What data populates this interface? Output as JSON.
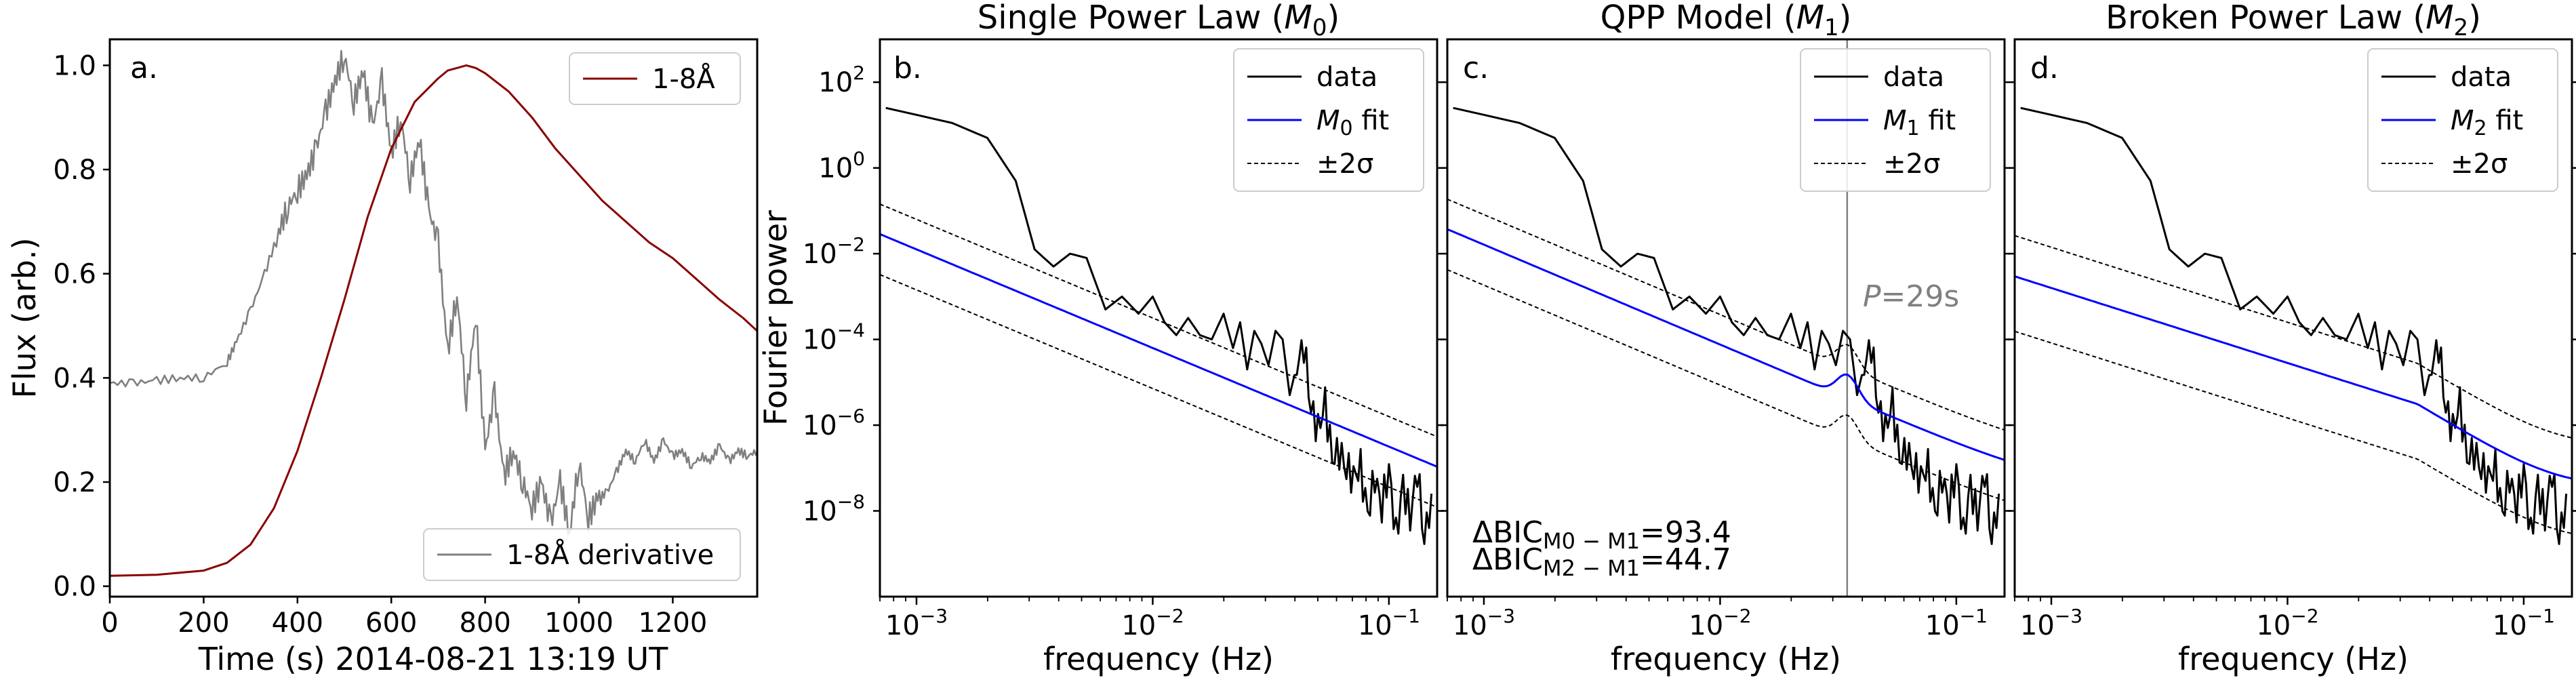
{
  "colors": {
    "flux": "#8b0000",
    "derivative": "#808080",
    "data": "#000000",
    "fit": "#0000ff",
    "band": "#000000",
    "period_line": "#808080",
    "period_text": "#808080"
  },
  "chart_data": [
    {
      "id": "a",
      "type": "line",
      "panel_label": "a.",
      "xlabel": "Time (s) 2014-08-21 13:19 UT",
      "ylabel": "Flux (arb.)",
      "xlim": [
        0,
        1380
      ],
      "ylim": [
        -0.02,
        1.05
      ],
      "xticks": [
        0,
        200,
        400,
        600,
        800,
        1000,
        1200
      ],
      "xtick_labels": [
        "0",
        "200",
        "400",
        "600",
        "800",
        "1000",
        "1200"
      ],
      "yticks": [
        0.0,
        0.2,
        0.4,
        0.6,
        0.8,
        1.0
      ],
      "ytick_labels": [
        "0.0",
        "0.2",
        "0.4",
        "0.6",
        "0.8",
        "1.0"
      ],
      "legend_top": {
        "position": "top-right",
        "label": "1-8Å"
      },
      "legend_bottom": {
        "position": "bottom-right",
        "label": "1-8Å derivative"
      },
      "series": [
        {
          "name": "1-8Å",
          "x": [
            0,
            100,
            200,
            250,
            300,
            350,
            400,
            450,
            500,
            550,
            600,
            650,
            700,
            720,
            740,
            760,
            780,
            800,
            850,
            900,
            950,
            1000,
            1050,
            1100,
            1150,
            1200,
            1250,
            1300,
            1350,
            1380
          ],
          "y": [
            0.02,
            0.022,
            0.03,
            0.045,
            0.08,
            0.15,
            0.26,
            0.4,
            0.55,
            0.71,
            0.84,
            0.93,
            0.975,
            0.99,
            0.995,
            1.0,
            0.995,
            0.985,
            0.95,
            0.9,
            0.84,
            0.79,
            0.74,
            0.7,
            0.66,
            0.63,
            0.59,
            0.55,
            0.515,
            0.49
          ]
        },
        {
          "name": "1-8Å derivative",
          "x": [
            0,
            50,
            100,
            150,
            200,
            250,
            270,
            300,
            330,
            360,
            380,
            400,
            420,
            440,
            460,
            480,
            500,
            520,
            540,
            560,
            580,
            600,
            620,
            640,
            660,
            680,
            700,
            720,
            740,
            760,
            780,
            800,
            820,
            840,
            860,
            880,
            900,
            920,
            940,
            960,
            980,
            1000,
            1020,
            1040,
            1060,
            1080,
            1100,
            1120,
            1140,
            1160,
            1180,
            1200,
            1220,
            1240,
            1260,
            1280,
            1300,
            1320,
            1340,
            1360,
            1380
          ],
          "y": [
            0.39,
            0.39,
            0.395,
            0.4,
            0.4,
            0.43,
            0.47,
            0.53,
            0.6,
            0.68,
            0.73,
            0.76,
            0.79,
            0.84,
            0.91,
            0.97,
            1.02,
            0.93,
            0.99,
            0.88,
            0.97,
            0.83,
            0.9,
            0.78,
            0.86,
            0.72,
            0.66,
            0.45,
            0.56,
            0.36,
            0.52,
            0.26,
            0.37,
            0.21,
            0.26,
            0.2,
            0.15,
            0.2,
            0.12,
            0.2,
            0.1,
            0.24,
            0.13,
            0.17,
            0.18,
            0.22,
            0.26,
            0.24,
            0.28,
            0.24,
            0.28,
            0.25,
            0.26,
            0.23,
            0.25,
            0.24,
            0.27,
            0.24,
            0.26,
            0.25,
            0.26
          ]
        }
      ]
    },
    {
      "id": "b",
      "type": "line",
      "title": "Single Power Law (M0)",
      "title_main": "Single Power Law (",
      "title_model": "M",
      "title_sub": "0",
      "title_close": ")",
      "panel_label": "b.",
      "xlabel": "frequency (Hz)",
      "ylabel": "Fourier power",
      "xscale": "log",
      "yscale": "log",
      "xlim": [
        0.0007,
        0.16
      ],
      "ylim": [
        1e-10,
        1000
      ],
      "legend": [
        {
          "label": "data"
        },
        {
          "label_main": "M",
          "label_sub": "0",
          "label_rest": " fit"
        },
        {
          "label": "±2σ"
        }
      ]
    },
    {
      "id": "c",
      "type": "line",
      "title": "QPP Model (M1)",
      "title_main": "QPP Model (",
      "title_model": "M",
      "title_sub": "1",
      "title_close": ")",
      "panel_label": "c.",
      "xlabel": "frequency (Hz)",
      "xscale": "log",
      "yscale": "log",
      "xlim": [
        0.0007,
        0.16
      ],
      "ylim": [
        1e-10,
        1000
      ],
      "legend": [
        {
          "label": "data"
        },
        {
          "label_main": "M",
          "label_sub": "1",
          "label_rest": " fit"
        },
        {
          "label": "±2σ"
        }
      ],
      "period_annotation": {
        "label": "P=29s",
        "label_var": "P",
        "label_val": "=29s",
        "frequency": 0.0345
      },
      "bic_annotations": [
        {
          "main": "ΔBIC",
          "sub": "M0 − M1",
          "value": "=93.4",
          "text": "ΔBICM0−M1=93.4"
        },
        {
          "main": "ΔBIC",
          "sub": "M2 − M1",
          "value": "=44.7",
          "text": "ΔBICM2−M1=44.7"
        }
      ]
    },
    {
      "id": "d",
      "type": "line",
      "title": "Broken Power Law (M2)",
      "title_main": "Broken Power Law (",
      "title_model": "M",
      "title_sub": "2",
      "title_close": ")",
      "panel_label": "d.",
      "xlabel": "frequency (Hz)",
      "xscale": "log",
      "yscale": "log",
      "xlim": [
        0.0007,
        0.16
      ],
      "ylim": [
        1e-10,
        1000
      ],
      "legend": [
        {
          "label": "data"
        },
        {
          "label_main": "M",
          "label_sub": "2",
          "label_rest": " fit"
        },
        {
          "label": "±2σ"
        }
      ]
    }
  ],
  "spectrum": {
    "x_log": [
      -3.13,
      -2.85,
      -2.7,
      -2.58,
      -2.5,
      -2.42,
      -2.35,
      -2.28,
      -2.2,
      -2.13,
      -2.06,
      -2.0,
      -1.95,
      -1.9,
      -1.85,
      -1.8,
      -1.75,
      -1.7,
      -1.66,
      -1.63,
      -1.6,
      -1.57,
      -1.54,
      -1.51,
      -1.48,
      -1.45,
      -1.42,
      -1.39,
      -1.36,
      -1.33,
      -1.3,
      -1.27,
      -1.24,
      -1.21,
      -1.18,
      -1.15,
      -1.12,
      -1.09,
      -1.06,
      -1.03,
      -1.0,
      -0.97,
      -0.94,
      -0.91,
      -0.88,
      -0.85,
      -0.82
    ],
    "y_log": [
      1.4,
      1.05,
      0.7,
      -0.3,
      -1.9,
      -2.3,
      -2.0,
      -2.1,
      -3.3,
      -3.0,
      -3.4,
      -3.0,
      -3.6,
      -3.9,
      -3.5,
      -3.9,
      -4.0,
      -3.4,
      -4.2,
      -3.6,
      -4.7,
      -3.8,
      -4.1,
      -4.6,
      -3.8,
      -4.0,
      -5.3,
      -4.6,
      -4.1,
      -5.6,
      -6.1,
      -5.5,
      -6.8,
      -6.6,
      -7.0,
      -7.2,
      -7.0,
      -8.1,
      -7.2,
      -7.9,
      -7.0,
      -8.6,
      -7.4,
      -8.2,
      -7.0,
      -8.7,
      -7.6
    ]
  },
  "fits": {
    "m0": {
      "intercept_log": -6.5,
      "slope": -2.3,
      "offset_log": 0.7
    },
    "m1": {
      "intercept_log": -6.45,
      "slope": -2.33,
      "offset_log": 0.7,
      "bump_center_log": -1.46,
      "bump_height_log": 0.55,
      "bump_width": 0.045,
      "floor_log": -7.45,
      "floor_k": 2.5
    },
    "m2": {
      "intercept_log": -6.3,
      "slope_low": -1.75,
      "slope_high": -3.3,
      "break_log": -1.45,
      "floor_log": -7.45,
      "offset_log": 0.95
    }
  }
}
